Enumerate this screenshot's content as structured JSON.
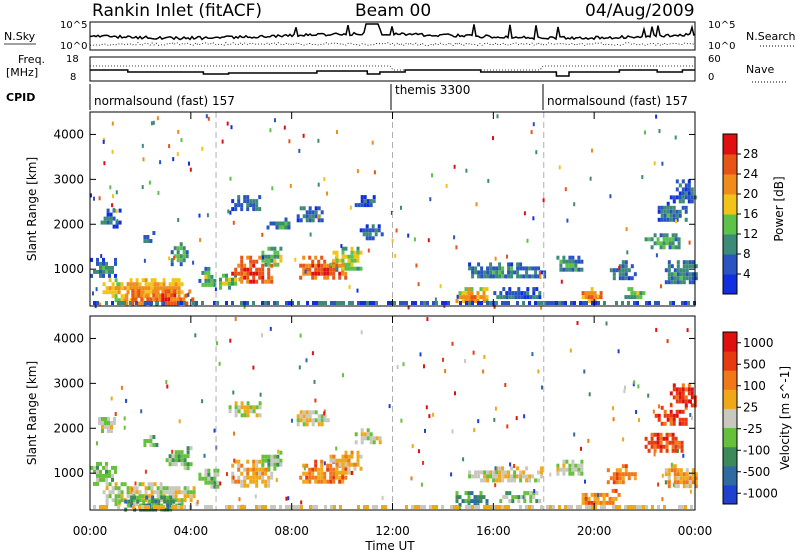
{
  "header": {
    "station": "Rankin Inlet (fitACF)",
    "beam": "Beam 00",
    "date": "04/Aug/2009"
  },
  "noise_panel": {
    "left_label": "N.Sky",
    "left_ticks": [
      "10^5",
      "10^0"
    ],
    "right_label": "N.Search",
    "right_ticks": [
      "10^5",
      "10^0"
    ]
  },
  "freq_panel": {
    "left_label_line1": "Freq.",
    "left_label_line2": "[MHz]",
    "left_ticks": [
      "18",
      "8"
    ],
    "right_label": "Nave",
    "right_ticks": [
      "60",
      "0"
    ]
  },
  "cpid": {
    "label": "CPID",
    "segments": [
      {
        "name": "normalsound (fast) 157",
        "start_hour": 0
      },
      {
        "name": "themis 3300",
        "start_hour": 12
      },
      {
        "name": "normalsound (fast) 157",
        "start_hour": 18
      }
    ]
  },
  "x_axis": {
    "label": "Time UT",
    "ticks": [
      "00:00",
      "04:00",
      "08:00",
      "12:00",
      "16:00",
      "20:00",
      "00:00"
    ],
    "range_hours": [
      0,
      24
    ]
  },
  "chart_data": [
    {
      "type": "heatmap",
      "ylabel": "Slant Range [km]",
      "yticks": [
        1000,
        2000,
        3000,
        4000
      ],
      "ylim": [
        180,
        4500
      ],
      "colorbar": {
        "label": "Power [dB]",
        "ticks": [
          "4",
          "8",
          "12",
          "16",
          "20",
          "24",
          "28"
        ],
        "colors": [
          "#1030e0",
          "#2a55c0",
          "#3c8a78",
          "#5cc24a",
          "#f2c418",
          "#f08c1a",
          "#e85418",
          "#e01010"
        ]
      },
      "blobs": [
        {
          "t0": 0.0,
          "t1": 1.0,
          "r0": 850,
          "r1": 1250,
          "v": 9
        },
        {
          "t0": 0.3,
          "t1": 1.2,
          "r0": 1950,
          "r1": 2350,
          "v": 7
        },
        {
          "t0": 0.5,
          "t1": 3.8,
          "r0": 350,
          "r1": 800,
          "v": 21
        },
        {
          "t0": 1.4,
          "t1": 4.2,
          "r0": 200,
          "r1": 550,
          "v": 26
        },
        {
          "t0": 2.0,
          "t1": 2.6,
          "r0": 1600,
          "r1": 1850,
          "v": 8
        },
        {
          "t0": 3.2,
          "t1": 3.8,
          "r0": 1150,
          "r1": 1600,
          "v": 12
        },
        {
          "t0": 4.3,
          "t1": 5.0,
          "r0": 650,
          "r1": 1050,
          "v": 13
        },
        {
          "t0": 5.0,
          "t1": 5.8,
          "r0": 600,
          "r1": 900,
          "v": 15
        },
        {
          "t0": 5.6,
          "t1": 6.8,
          "r0": 2350,
          "r1": 2650,
          "v": 9
        },
        {
          "t0": 5.6,
          "t1": 7.2,
          "r0": 700,
          "r1": 1300,
          "v": 28
        },
        {
          "t0": 6.8,
          "t1": 7.6,
          "r0": 1100,
          "r1": 1500,
          "v": 15
        },
        {
          "t0": 7.0,
          "t1": 7.9,
          "r0": 1900,
          "r1": 2150,
          "v": 11
        },
        {
          "t0": 8.2,
          "t1": 9.2,
          "r0": 2100,
          "r1": 2400,
          "v": 10
        },
        {
          "t0": 8.3,
          "t1": 10.2,
          "r0": 800,
          "r1": 1300,
          "v": 27
        },
        {
          "t0": 9.5,
          "t1": 10.8,
          "r0": 1000,
          "r1": 1500,
          "v": 17
        },
        {
          "t0": 10.5,
          "t1": 11.4,
          "r0": 2400,
          "r1": 2650,
          "v": 7
        },
        {
          "t0": 10.7,
          "t1": 11.6,
          "r0": 1700,
          "r1": 2000,
          "v": 8
        },
        {
          "t0": 14.5,
          "t1": 15.8,
          "r0": 250,
          "r1": 600,
          "v": 21
        },
        {
          "t0": 15.0,
          "t1": 18.0,
          "r0": 800,
          "r1": 1150,
          "v": 9
        },
        {
          "t0": 16.0,
          "t1": 17.8,
          "r0": 350,
          "r1": 600,
          "v": 8
        },
        {
          "t0": 18.5,
          "t1": 19.5,
          "r0": 950,
          "r1": 1300,
          "v": 11
        },
        {
          "t0": 19.5,
          "t1": 20.4,
          "r0": 300,
          "r1": 600,
          "v": 24
        },
        {
          "t0": 20.5,
          "t1": 21.6,
          "r0": 800,
          "r1": 1200,
          "v": 9
        },
        {
          "t0": 21.2,
          "t1": 22.0,
          "r0": 350,
          "r1": 600,
          "v": 14
        },
        {
          "t0": 22.0,
          "t1": 23.5,
          "r0": 1500,
          "r1": 1800,
          "v": 12
        },
        {
          "t0": 22.4,
          "t1": 23.6,
          "r0": 2100,
          "r1": 2500,
          "v": 9
        },
        {
          "t0": 23.0,
          "t1": 24.0,
          "r0": 2500,
          "r1": 3000,
          "v": 7
        },
        {
          "t0": 22.8,
          "t1": 24.0,
          "r0": 700,
          "r1": 1200,
          "v": 10
        }
      ]
    },
    {
      "type": "heatmap",
      "ylabel": "Slant Range [km]",
      "yticks": [
        1000,
        2000,
        3000,
        4000
      ],
      "ylim": [
        180,
        4500
      ],
      "colorbar": {
        "label": "Velocity [m s^-1]",
        "ticks": [
          "1000",
          "500",
          "100",
          "25",
          "-25",
          "-100",
          "-500",
          "-1000"
        ],
        "colors": [
          "#2040d0",
          "#2f6aa0",
          "#3c8a5a",
          "#66c03c",
          "#c8c8c0",
          "#f0a818",
          "#f07818",
          "#e83a10",
          "#e01010"
        ]
      },
      "blobs": [
        {
          "t0": 0.0,
          "t1": 1.0,
          "r0": 800,
          "r1": 1250,
          "v": 3
        },
        {
          "t0": 0.2,
          "t1": 1.0,
          "r0": 1950,
          "r1": 2250,
          "v": 4
        },
        {
          "t0": 0.5,
          "t1": 4.2,
          "r0": 300,
          "r1": 800,
          "v": 4
        },
        {
          "t0": 1.0,
          "t1": 3.8,
          "r0": 200,
          "r1": 500,
          "v": 2
        },
        {
          "t0": 2.0,
          "t1": 2.6,
          "r0": 1600,
          "r1": 1850,
          "v": 3
        },
        {
          "t0": 3.0,
          "t1": 4.0,
          "r0": 1150,
          "r1": 1600,
          "v": 3
        },
        {
          "t0": 4.3,
          "t1": 5.2,
          "r0": 700,
          "r1": 1100,
          "v": 3
        },
        {
          "t0": 5.6,
          "t1": 7.2,
          "r0": 700,
          "r1": 1300,
          "v": 5
        },
        {
          "t0": 5.5,
          "t1": 6.8,
          "r0": 2300,
          "r1": 2600,
          "v": 4
        },
        {
          "t0": 6.8,
          "t1": 7.6,
          "r0": 1100,
          "r1": 1500,
          "v": 3
        },
        {
          "t0": 8.2,
          "t1": 9.4,
          "r0": 2050,
          "r1": 2400,
          "v": 4
        },
        {
          "t0": 8.3,
          "t1": 10.2,
          "r0": 800,
          "r1": 1300,
          "v": 6
        },
        {
          "t0": 9.5,
          "t1": 10.8,
          "r0": 1000,
          "r1": 1500,
          "v": 5
        },
        {
          "t0": 10.5,
          "t1": 11.5,
          "r0": 1700,
          "r1": 2000,
          "v": 4
        },
        {
          "t0": 14.5,
          "t1": 15.8,
          "r0": 250,
          "r1": 600,
          "v": 2
        },
        {
          "t0": 15.0,
          "t1": 18.0,
          "r0": 800,
          "r1": 1150,
          "v": 4
        },
        {
          "t0": 16.0,
          "t1": 17.8,
          "r0": 350,
          "r1": 600,
          "v": 3
        },
        {
          "t0": 18.5,
          "t1": 19.5,
          "r0": 950,
          "r1": 1300,
          "v": 4
        },
        {
          "t0": 19.5,
          "t1": 21.0,
          "r0": 300,
          "r1": 650,
          "v": 6
        },
        {
          "t0": 20.5,
          "t1": 21.6,
          "r0": 800,
          "r1": 1200,
          "v": 6
        },
        {
          "t0": 22.0,
          "t1": 23.5,
          "r0": 1500,
          "r1": 1900,
          "v": 7
        },
        {
          "t0": 22.4,
          "t1": 23.6,
          "r0": 2100,
          "r1": 2500,
          "v": 7
        },
        {
          "t0": 23.0,
          "t1": 24.0,
          "r0": 2500,
          "r1": 3000,
          "v": 7
        },
        {
          "t0": 22.8,
          "t1": 24.0,
          "r0": 700,
          "r1": 1200,
          "v": 5
        }
      ]
    }
  ]
}
